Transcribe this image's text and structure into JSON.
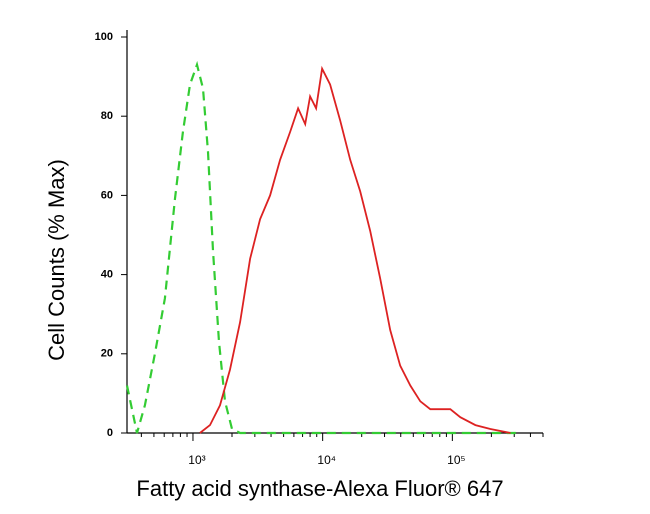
{
  "chart_data": {
    "type": "line",
    "x_label": "Fatty acid synthase-Alexa Fluor® 647",
    "y_label": "Cell Counts (% Max)",
    "x_scale": "log",
    "xlim": [
      310,
      500000
    ],
    "ylim": [
      0,
      100
    ],
    "xticks": [
      {
        "value": 1000,
        "label": "10³"
      },
      {
        "value": 10000,
        "label": "10⁴"
      },
      {
        "value": 100000,
        "label": "10⁵"
      }
    ],
    "xminor_ticks": [
      400,
      500,
      600,
      700,
      800,
      900,
      2000,
      3000,
      4000,
      5000,
      6000,
      7000,
      8000,
      9000,
      20000,
      30000,
      40000,
      50000,
      60000,
      70000,
      80000,
      90000,
      200000,
      300000,
      400000,
      500000
    ],
    "yticks": [
      0,
      20,
      40,
      60,
      80,
      100
    ],
    "series": [
      {
        "color": "#33cc33",
        "dashed": true,
        "x": [
          310,
          370,
          426,
          509,
          608,
          726,
          837,
          948,
          1074,
          1195,
          1306,
          1427,
          1588,
          1766,
          2000,
          2307,
          335000
        ],
        "values": [
          12,
          0,
          7,
          20,
          34,
          59,
          76,
          88,
          93,
          87,
          71,
          46,
          23,
          8,
          1,
          0,
          0
        ]
      },
      {
        "color": "#dd2222",
        "dashed": false,
        "x": [
          1132,
          1352,
          1617,
          1931,
          2307,
          2756,
          3292,
          3933,
          4698,
          5612,
          6470,
          7330,
          8000,
          8905,
          9910,
          11420,
          13640,
          16300,
          19470,
          23260,
          27780,
          33190,
          39650,
          47360,
          56580,
          67590,
          80740,
          96450,
          115200,
          150600,
          196500,
          280600
        ],
        "values": [
          0,
          2,
          7,
          16,
          28,
          44,
          54,
          60,
          69,
          76,
          82,
          78,
          85,
          82,
          92,
          88,
          79,
          69,
          61,
          51,
          39,
          26,
          17,
          12,
          8,
          6,
          6,
          6,
          4,
          2,
          1,
          0
        ]
      }
    ]
  }
}
